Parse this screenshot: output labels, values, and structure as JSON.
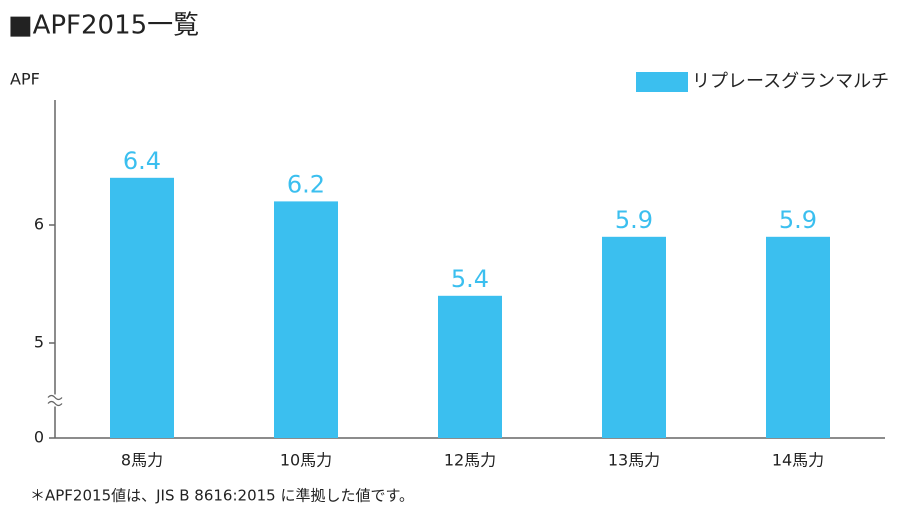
{
  "chart_data": {
    "type": "bar",
    "title": "■APF2015一覧",
    "y_label": "APF",
    "categories": [
      "8馬力",
      "10馬力",
      "12馬力",
      "13馬力",
      "14馬力"
    ],
    "series": [
      {
        "name": "リプレースグランマルチ",
        "color": "#3bbfef",
        "values": [
          6.4,
          6.2,
          5.4,
          5.9,
          5.9
        ]
      }
    ],
    "ylim": [
      0,
      7
    ],
    "yticks": [
      0,
      5,
      6
    ],
    "axis_break": true,
    "footnote": "＊APF2015値は、JIS B 8616:2015 に準拠した値です。"
  }
}
